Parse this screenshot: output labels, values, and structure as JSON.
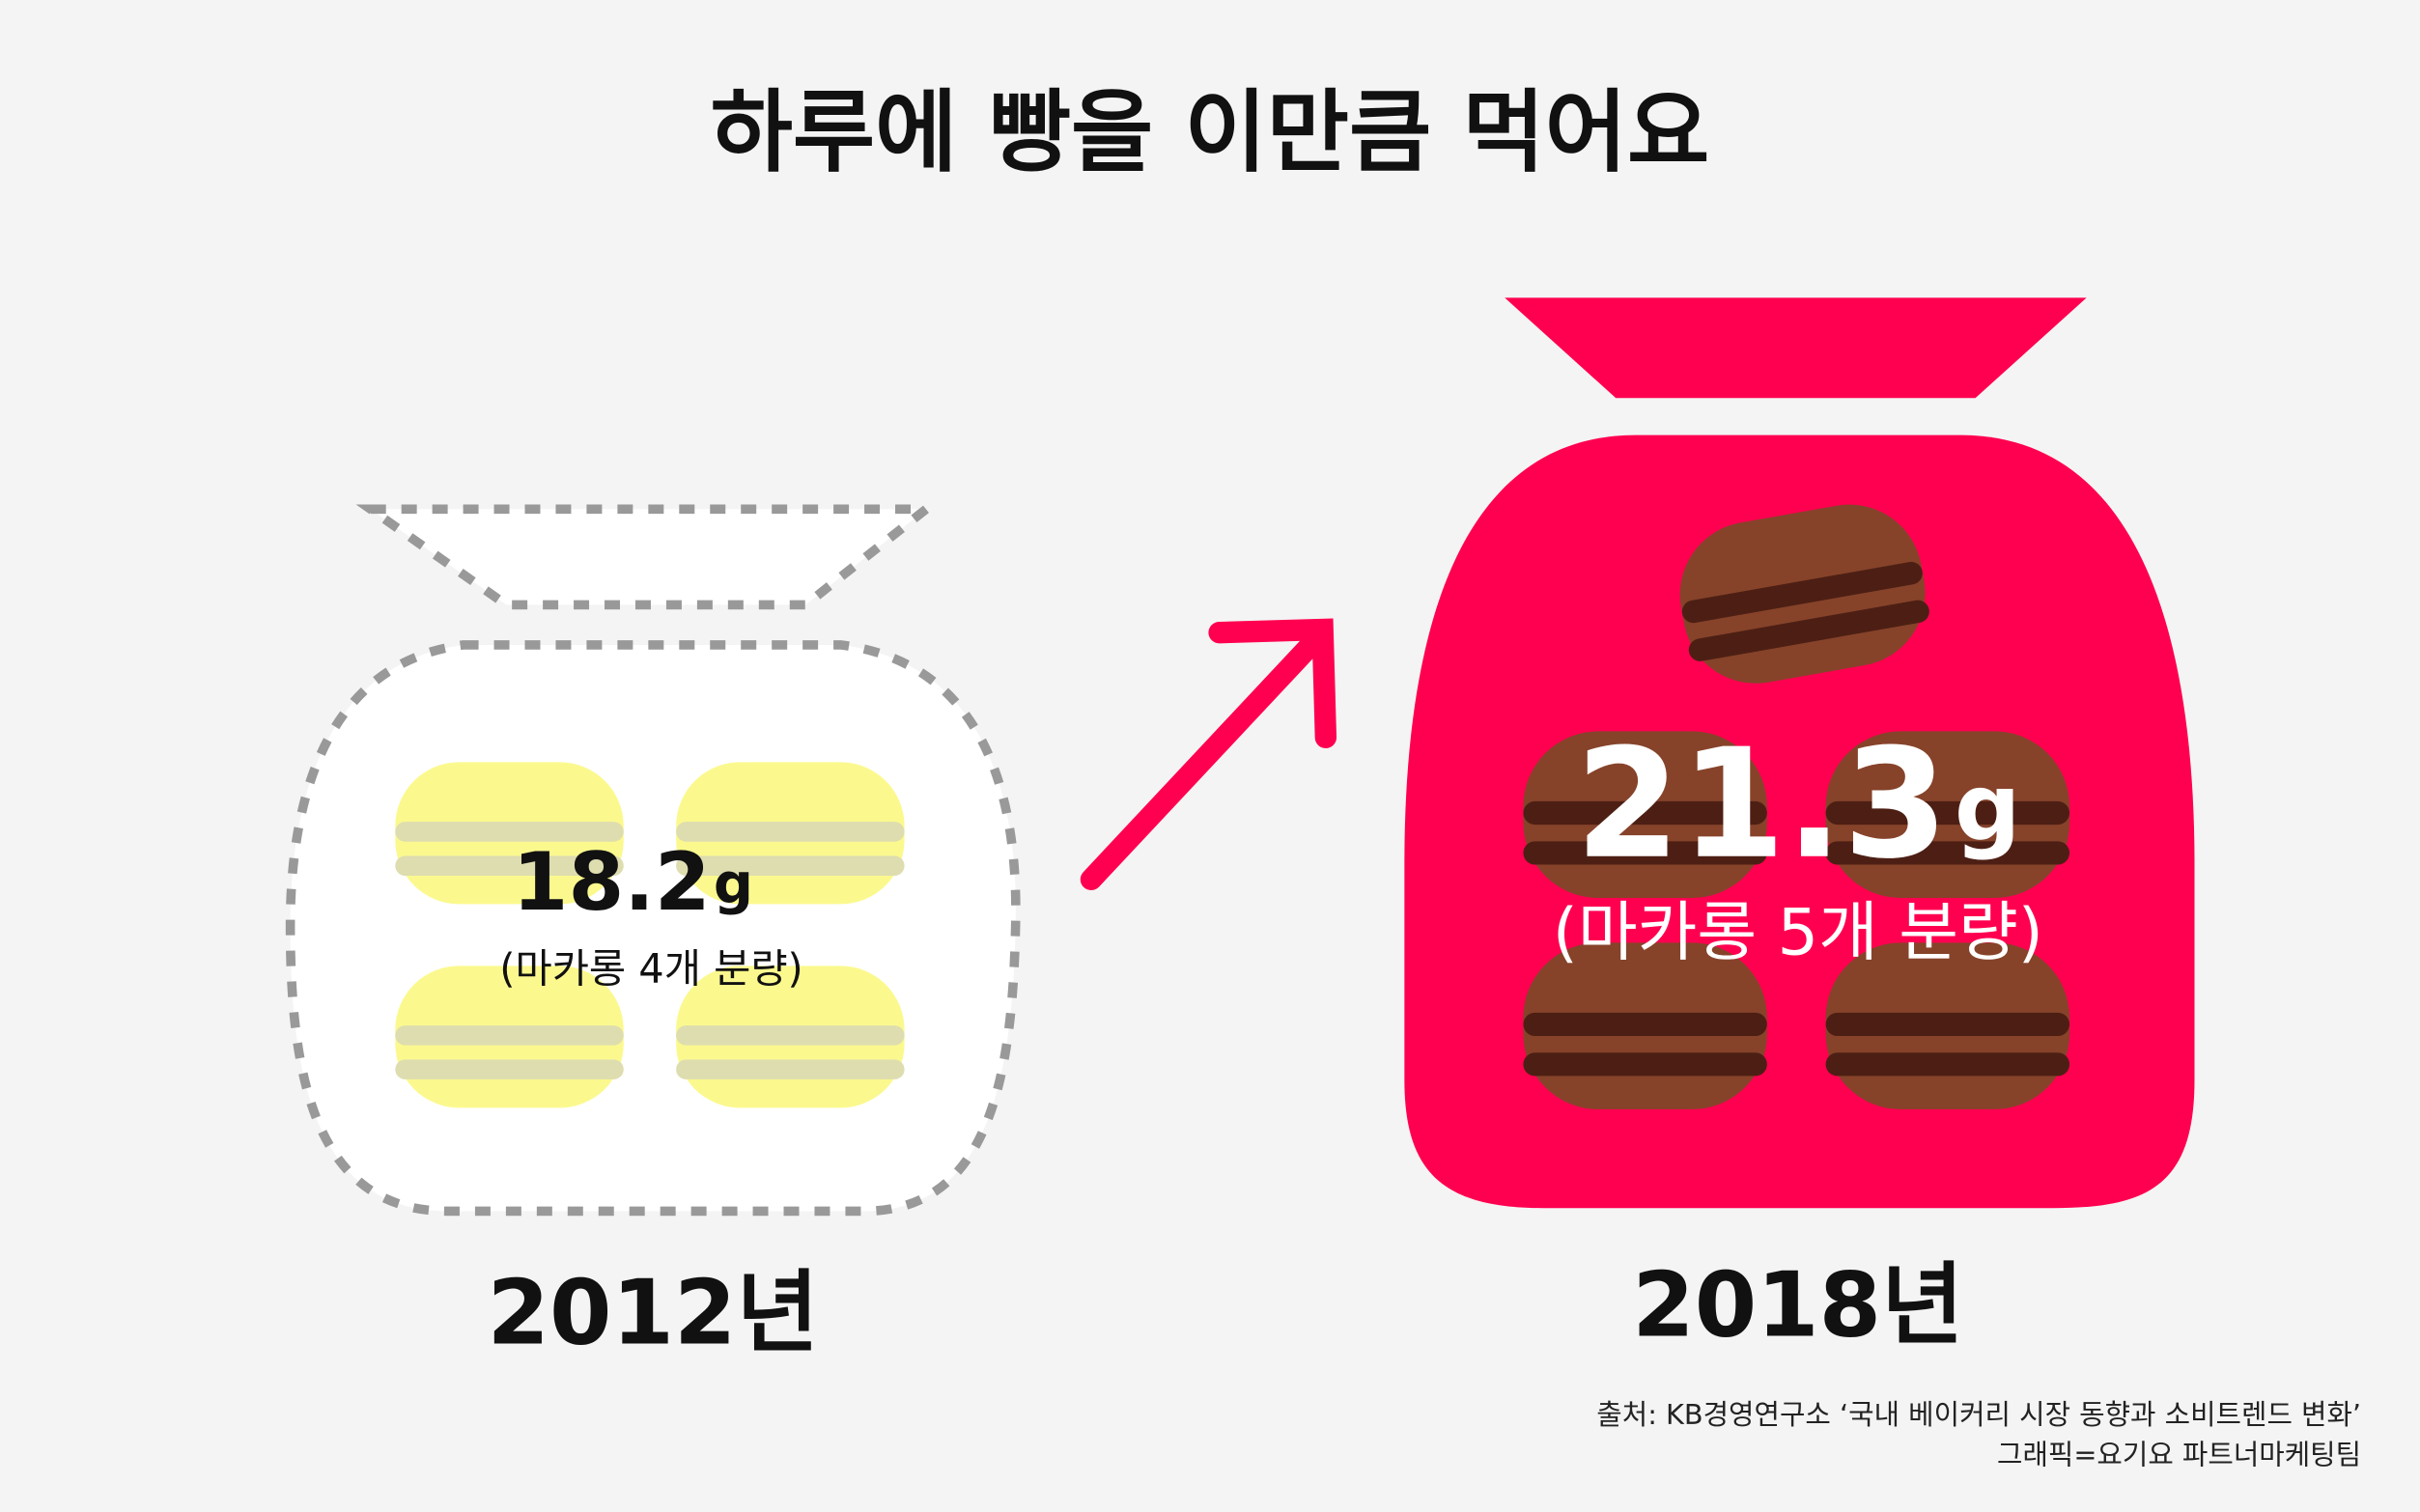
{
  "title": "하루에 빵을 이만큼 먹어요",
  "panels": [
    {
      "amount": "18.2",
      "unit": "g",
      "note": "(마카롱 4개 분량)",
      "year": "2012년"
    },
    {
      "amount": "21.3",
      "unit": "g",
      "note": "(마카롱 5개 분량)",
      "year": "2018년"
    }
  ],
  "source": [
    "출처: KB경영연구소 ‘국내 베이커리 시장 동향과 소비트렌드 변화’",
    "그래픽=요기요 파트너마케팅팀"
  ]
}
